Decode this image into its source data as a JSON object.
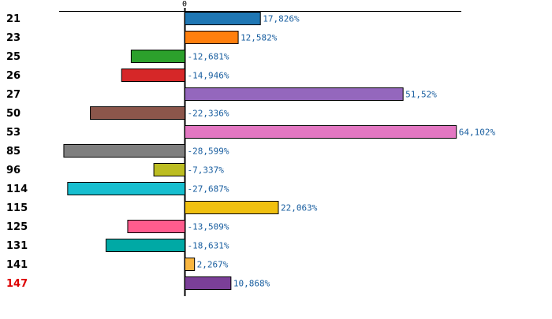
{
  "chart_data": {
    "type": "bar",
    "orientation": "horizontal",
    "title": "",
    "xlabel": "",
    "ylabel": "",
    "xlim": [
      -33,
      64.5
    ],
    "zero_tick_label": "0",
    "highlight_category": "147",
    "categories": [
      "21",
      "23",
      "25",
      "26",
      "27",
      "50",
      "53",
      "85",
      "96",
      "114",
      "115",
      "125",
      "131",
      "141",
      "147"
    ],
    "values": [
      17.826,
      12.582,
      -12.681,
      -14.946,
      51.52,
      -22.336,
      64.102,
      -28.599,
      -7.337,
      -27.687,
      22.063,
      -13.509,
      -18.631,
      2.267,
      10.868
    ],
    "value_labels": [
      "17,826%",
      "12,582%",
      "-12,681%",
      "-14,946%",
      "51,52%",
      "-22,336%",
      "64,102%",
      "-28,599%",
      "-7,337%",
      "-27,687%",
      "22,063%",
      "-13,509%",
      "-18,631%",
      "2,267%",
      "10,868%"
    ],
    "colors": [
      "#1f77b4",
      "#ff7f0e",
      "#2ca02c",
      "#d62728",
      "#9467bd",
      "#8c564b",
      "#e377c2",
      "#7f7f7f",
      "#bcbd22",
      "#17becf",
      "#f0c010",
      "#ff5c8d",
      "#00a9a5",
      "#f9b640",
      "#7b3f98"
    ]
  }
}
